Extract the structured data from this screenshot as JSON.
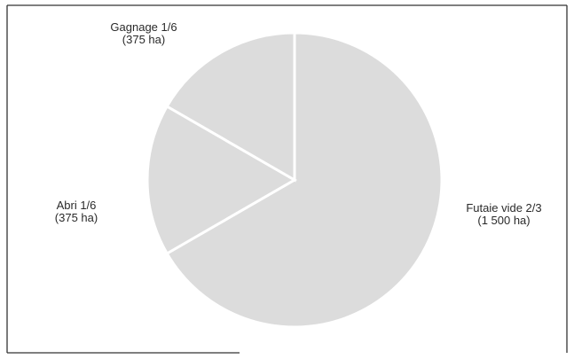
{
  "chart_data": {
    "type": "pie",
    "slices": [
      {
        "name": "Futaie vide",
        "fraction_label": "2/3",
        "value": 1500,
        "unit": "ha",
        "value_label": "(1 500 ha)",
        "color": "#dcdcdc"
      },
      {
        "name": "Abri",
        "fraction_label": "1/6",
        "value": 375,
        "unit": "ha",
        "value_label": "(375 ha)",
        "color": "#dcdcdc"
      },
      {
        "name": "Gagnage",
        "fraction_label": "1/6",
        "value": 375,
        "unit": "ha",
        "value_label": "(375 ha)",
        "color": "#dcdcdc"
      }
    ],
    "labels": {
      "futaie": {
        "line1": "Futaie vide 2/3",
        "line2": "(1 500 ha)"
      },
      "abri": {
        "line1": "Abri 1/6",
        "line2": "(375 ha)"
      },
      "gagnage": {
        "line1": "Gagnage 1/6",
        "line2": "(375 ha)"
      }
    },
    "start_angle_deg": 0,
    "direction": "clockwise",
    "separator_color": "#ffffff",
    "legend": "none"
  }
}
